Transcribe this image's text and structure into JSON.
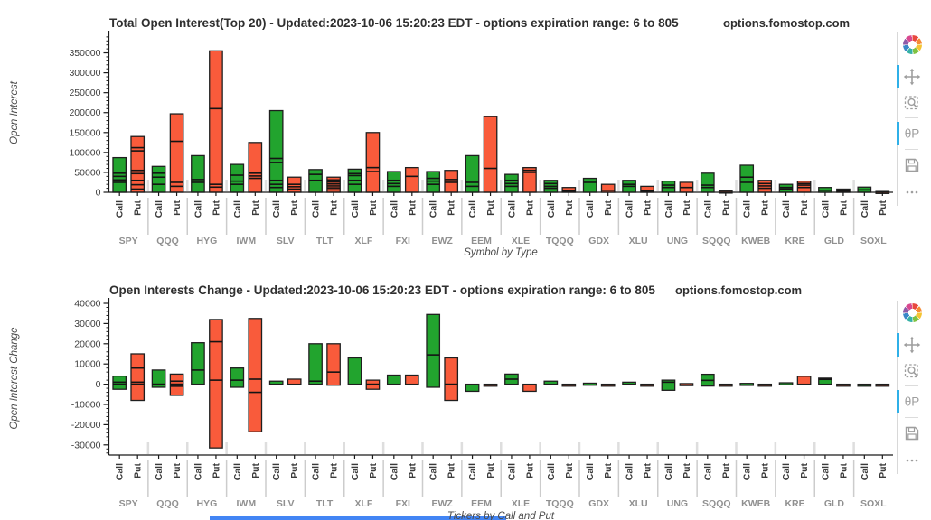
{
  "colors": {
    "call": "#22a42e",
    "put": "#f95b3b",
    "bar_edge": "#1f1f1f",
    "divider_line": "#141414",
    "axis": "#1a1a1a",
    "separator": "#cccccc",
    "active_tool": "#2fb0e8"
  },
  "toolbar": {
    "hover_glyph": "θΡ",
    "tools": [
      {
        "name": "bokeh-logo",
        "active": false
      },
      {
        "name": "pan",
        "active": true
      },
      {
        "name": "box-zoom",
        "active": false
      },
      {
        "name": "hover",
        "active": true
      },
      {
        "name": "save",
        "active": false
      },
      {
        "name": "more",
        "active": false
      }
    ]
  },
  "chart_data": [
    {
      "type": "bar",
      "title": "Total Open Interest(Top 20) - Updated:2023-10-06 15:20:23 EDT - options expiration range: 6 to 805",
      "watermark": "options.fomostop.com",
      "xlabel": "Symbol by Type",
      "ylabel": "Open Interest",
      "ylim": [
        0,
        392000
      ],
      "yticks": [
        0,
        50000,
        100000,
        150000,
        200000,
        250000,
        300000,
        350000
      ],
      "minor_step": 10000,
      "legend_position": "none",
      "grid": false,
      "categories": [
        "SPY",
        "QQQ",
        "HYG",
        "IWM",
        "SLV",
        "TLT",
        "XLF",
        "FXI",
        "EWZ",
        "EEM",
        "XLE",
        "TQQQ",
        "GDX",
        "XLU",
        "UNG",
        "SQQQ",
        "KWEB",
        "KRE",
        "GLD",
        "SOXL"
      ],
      "series": [
        {
          "name": "Call",
          "color_key": "call",
          "bars": [
            {
              "total": 87000,
              "dividers": [
                25000,
                31000,
                40000,
                48000
              ]
            },
            {
              "total": 65000,
              "dividers": [
                20000,
                38000,
                48000
              ]
            },
            {
              "total": 92000,
              "dividers": [
                25000,
                32000
              ]
            },
            {
              "total": 70000,
              "dividers": [
                20000,
                28000,
                43000
              ]
            },
            {
              "total": 205000,
              "dividers": [
                12000,
                20000,
                30000,
                75000,
                85000
              ]
            },
            {
              "total": 57000,
              "dividers": [
                30000,
                45000
              ]
            },
            {
              "total": 58000,
              "dividers": [
                20000,
                30000,
                42000,
                47000
              ]
            },
            {
              "total": 52000,
              "dividers": [
                15000,
                22000,
                30000
              ]
            },
            {
              "total": 52000,
              "dividers": [
                20000,
                28000,
                35000
              ]
            },
            {
              "total": 92000,
              "dividers": [
                15000,
                25000
              ]
            },
            {
              "total": 45000,
              "dividers": [
                15000,
                22000,
                30000
              ]
            },
            {
              "total": 30000,
              "dividers": [
                10000,
                15000,
                22000
              ]
            },
            {
              "total": 35000,
              "dividers": [
                25000
              ]
            },
            {
              "total": 30000,
              "dividers": [
                15000,
                20000
              ]
            },
            {
              "total": 28000,
              "dividers": [
                12000,
                18000
              ]
            },
            {
              "total": 48000,
              "dividers": [
                12000,
                18000
              ]
            },
            {
              "total": 68000,
              "dividers": [
                25000,
                38000
              ]
            },
            {
              "total": 20000,
              "dividers": [
                8000,
                12000
              ]
            },
            {
              "total": 12000,
              "dividers": [
                5000
              ]
            },
            {
              "total": 13000,
              "dividers": [
                6000
              ]
            }
          ]
        },
        {
          "name": "Put",
          "color_key": "put",
          "bars": [
            {
              "total": 140000,
              "dividers": [
                8000,
                19000,
                30000,
                47000,
                55000,
                104000,
                112000
              ]
            },
            {
              "total": 197000,
              "dividers": [
                15000,
                25000,
                128000
              ]
            },
            {
              "total": 355000,
              "dividers": [
                13000,
                20000,
                210000
              ]
            },
            {
              "total": 125000,
              "dividers": [
                35000,
                41000,
                48000
              ]
            },
            {
              "total": 38000,
              "dividers": [
                8000,
                14000,
                20000
              ]
            },
            {
              "total": 38000,
              "dividers": [
                6000,
                11000,
                16000,
                21000,
                26000,
                31000
              ]
            },
            {
              "total": 150000,
              "dividers": [
                52000,
                62000
              ]
            },
            {
              "total": 62000,
              "dividers": [
                40000
              ]
            },
            {
              "total": 55000,
              "dividers": [
                25000,
                32000
              ]
            },
            {
              "total": 190000,
              "dividers": [
                60000
              ]
            },
            {
              "total": 62000,
              "dividers": [
                50000,
                55000
              ]
            },
            {
              "total": 12000,
              "dividers": [
                3000
              ]
            },
            {
              "total": 20000,
              "dividers": [
                5000
              ]
            },
            {
              "total": 15000,
              "dividers": [
                3000
              ]
            },
            {
              "total": 25000,
              "dividers": [
                12000
              ]
            },
            {
              "total": 3000,
              "dividers": []
            },
            {
              "total": 30000,
              "dividers": [
                10000,
                16000,
                22000
              ]
            },
            {
              "total": 28000,
              "dividers": [
                12000,
                18000,
                22000
              ]
            },
            {
              "total": 8000,
              "dividers": [
                3000
              ]
            },
            {
              "total": 2000,
              "dividers": []
            }
          ]
        }
      ]
    },
    {
      "type": "bar",
      "title": "Open Interests Change - Updated:2023-10-06 15:20:23 EDT - options expiration range: 6 to 805",
      "watermark": "options.fomostop.com",
      "xlabel": "Tickers by Call and Put",
      "ylabel": "Open Interest Change",
      "ylim": [
        -35000,
        40000
      ],
      "yticks": [
        -30000,
        -20000,
        -10000,
        0,
        10000,
        20000,
        30000,
        40000
      ],
      "minor_step": 2000,
      "legend_position": "none",
      "grid": false,
      "categories": [
        "SPY",
        "QQQ",
        "HYG",
        "IWM",
        "SLV",
        "TLT",
        "XLF",
        "FXI",
        "EWZ",
        "EEM",
        "XLE",
        "TQQQ",
        "GDX",
        "XLU",
        "UNG",
        "SQQQ",
        "KWEB",
        "KRE",
        "GLD",
        "SOXL"
      ],
      "series": [
        {
          "name": "Call",
          "color_key": "call",
          "bars": [
            {
              "from": -2500,
              "to": 4000,
              "dividers": [
                0,
                1000
              ]
            },
            {
              "from": -1500,
              "to": 7000,
              "dividers": [
                0
              ]
            },
            {
              "from": 0,
              "to": 20500,
              "dividers": [
                7000
              ]
            },
            {
              "from": -1500,
              "to": 8000,
              "dividers": [
                2000
              ]
            },
            {
              "from": 0,
              "to": 1500,
              "dividers": []
            },
            {
              "from": 0,
              "to": 20000,
              "dividers": [
                1500
              ]
            },
            {
              "from": 0,
              "to": 13000,
              "dividers": []
            },
            {
              "from": 0,
              "to": 4500,
              "dividers": []
            },
            {
              "from": -1500,
              "to": 34500,
              "dividers": [
                14500
              ]
            },
            {
              "from": -3500,
              "to": 0,
              "dividers": []
            },
            {
              "from": 0,
              "to": 5000,
              "dividers": [
                2500
              ]
            },
            {
              "from": 0,
              "to": 1500,
              "dividers": []
            },
            {
              "from": -500,
              "to": 500,
              "dividers": []
            },
            {
              "from": 0,
              "to": 1000,
              "dividers": []
            },
            {
              "from": -3000,
              "to": 2000,
              "dividers": [
                1000
              ]
            },
            {
              "from": -900,
              "to": 4900,
              "dividers": [
                1900
              ]
            },
            {
              "from": -400,
              "to": 400,
              "dividers": []
            },
            {
              "from": 0,
              "to": 700,
              "dividers": []
            },
            {
              "from": 0,
              "to": 3000,
              "dividers": [
                2400
              ]
            },
            {
              "from": -500,
              "to": 0,
              "dividers": []
            }
          ]
        },
        {
          "name": "Put",
          "color_key": "put",
          "bars": [
            {
              "from": -8000,
              "to": 15000,
              "dividers": [
                0,
                1000,
                8000
              ]
            },
            {
              "from": -5500,
              "to": 5000,
              "dividers": [
                -1000,
                0,
                1500
              ]
            },
            {
              "from": -31500,
              "to": 32000,
              "dividers": [
                2000,
                21000
              ]
            },
            {
              "from": -23500,
              "to": 32500,
              "dividers": [
                -4000,
                2500
              ]
            },
            {
              "from": 0,
              "to": 2500,
              "dividers": []
            },
            {
              "from": -500,
              "to": 20000,
              "dividers": [
                6000
              ]
            },
            {
              "from": -2500,
              "to": 2000,
              "dividers": [
                0
              ]
            },
            {
              "from": 0,
              "to": 4500,
              "dividers": []
            },
            {
              "from": -8000,
              "to": 13000,
              "dividers": [
                0
              ]
            },
            {
              "from": -700,
              "to": 0,
              "dividers": []
            },
            {
              "from": -3500,
              "to": 0,
              "dividers": []
            },
            {
              "from": -500,
              "to": 0,
              "dividers": []
            },
            {
              "from": -600,
              "to": 0,
              "dividers": []
            },
            {
              "from": -700,
              "to": 0,
              "dividers": []
            },
            {
              "from": -300,
              "to": 300,
              "dividers": []
            },
            {
              "from": -400,
              "to": 0,
              "dividers": []
            },
            {
              "from": -400,
              "to": 0,
              "dividers": []
            },
            {
              "from": 0,
              "to": 3900,
              "dividers": []
            },
            {
              "from": -400,
              "to": 0,
              "dividers": []
            },
            {
              "from": -400,
              "to": 0,
              "dividers": []
            }
          ]
        }
      ]
    }
  ]
}
